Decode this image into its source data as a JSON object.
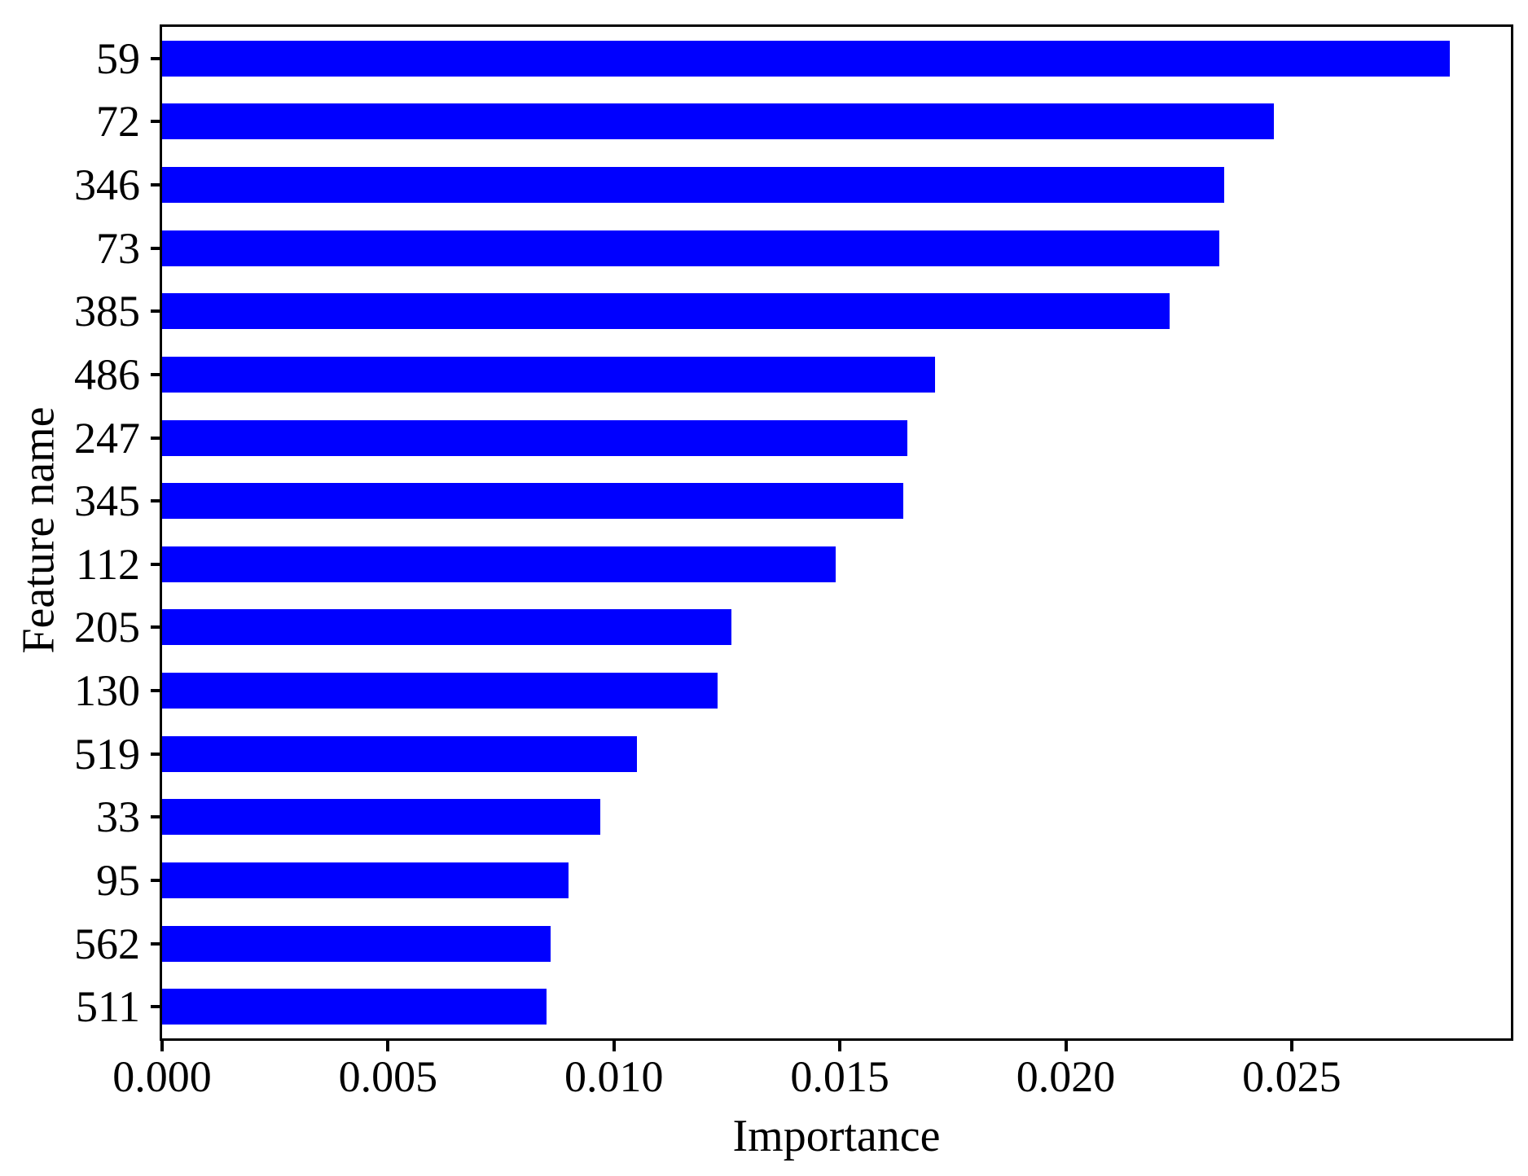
{
  "figure": {
    "background_color": "#ffffff",
    "frame_color": "#000000"
  },
  "chart_data": {
    "type": "bar",
    "orientation": "horizontal",
    "title": "",
    "xlabel": "Importance",
    "ylabel": "Feature name",
    "categories": [
      "59",
      "72",
      "346",
      "73",
      "385",
      "486",
      "247",
      "345",
      "112",
      "205",
      "130",
      "519",
      "33",
      "95",
      "562",
      "511"
    ],
    "values": [
      0.0285,
      0.0246,
      0.0235,
      0.0234,
      0.0223,
      0.0171,
      0.0165,
      0.0164,
      0.0149,
      0.0126,
      0.0123,
      0.0105,
      0.0097,
      0.009,
      0.0086,
      0.0085
    ],
    "series": [
      {
        "name": "Importance",
        "values": [
          0.0285,
          0.0246,
          0.0235,
          0.0234,
          0.0223,
          0.0171,
          0.0165,
          0.0164,
          0.0149,
          0.0126,
          0.0123,
          0.0105,
          0.0097,
          0.009,
          0.0086,
          0.0085
        ]
      }
    ],
    "x_ticks": [
      0.0,
      0.005,
      0.01,
      0.015,
      0.02,
      0.025
    ],
    "x_tick_labels": [
      "0.000",
      "0.005",
      "0.010",
      "0.015",
      "0.020",
      "0.025"
    ],
    "xlim": [
      0,
      0.02985
    ],
    "bar_color": "#0000ff",
    "grid": false,
    "legend": "none",
    "sort_order": "descending"
  }
}
